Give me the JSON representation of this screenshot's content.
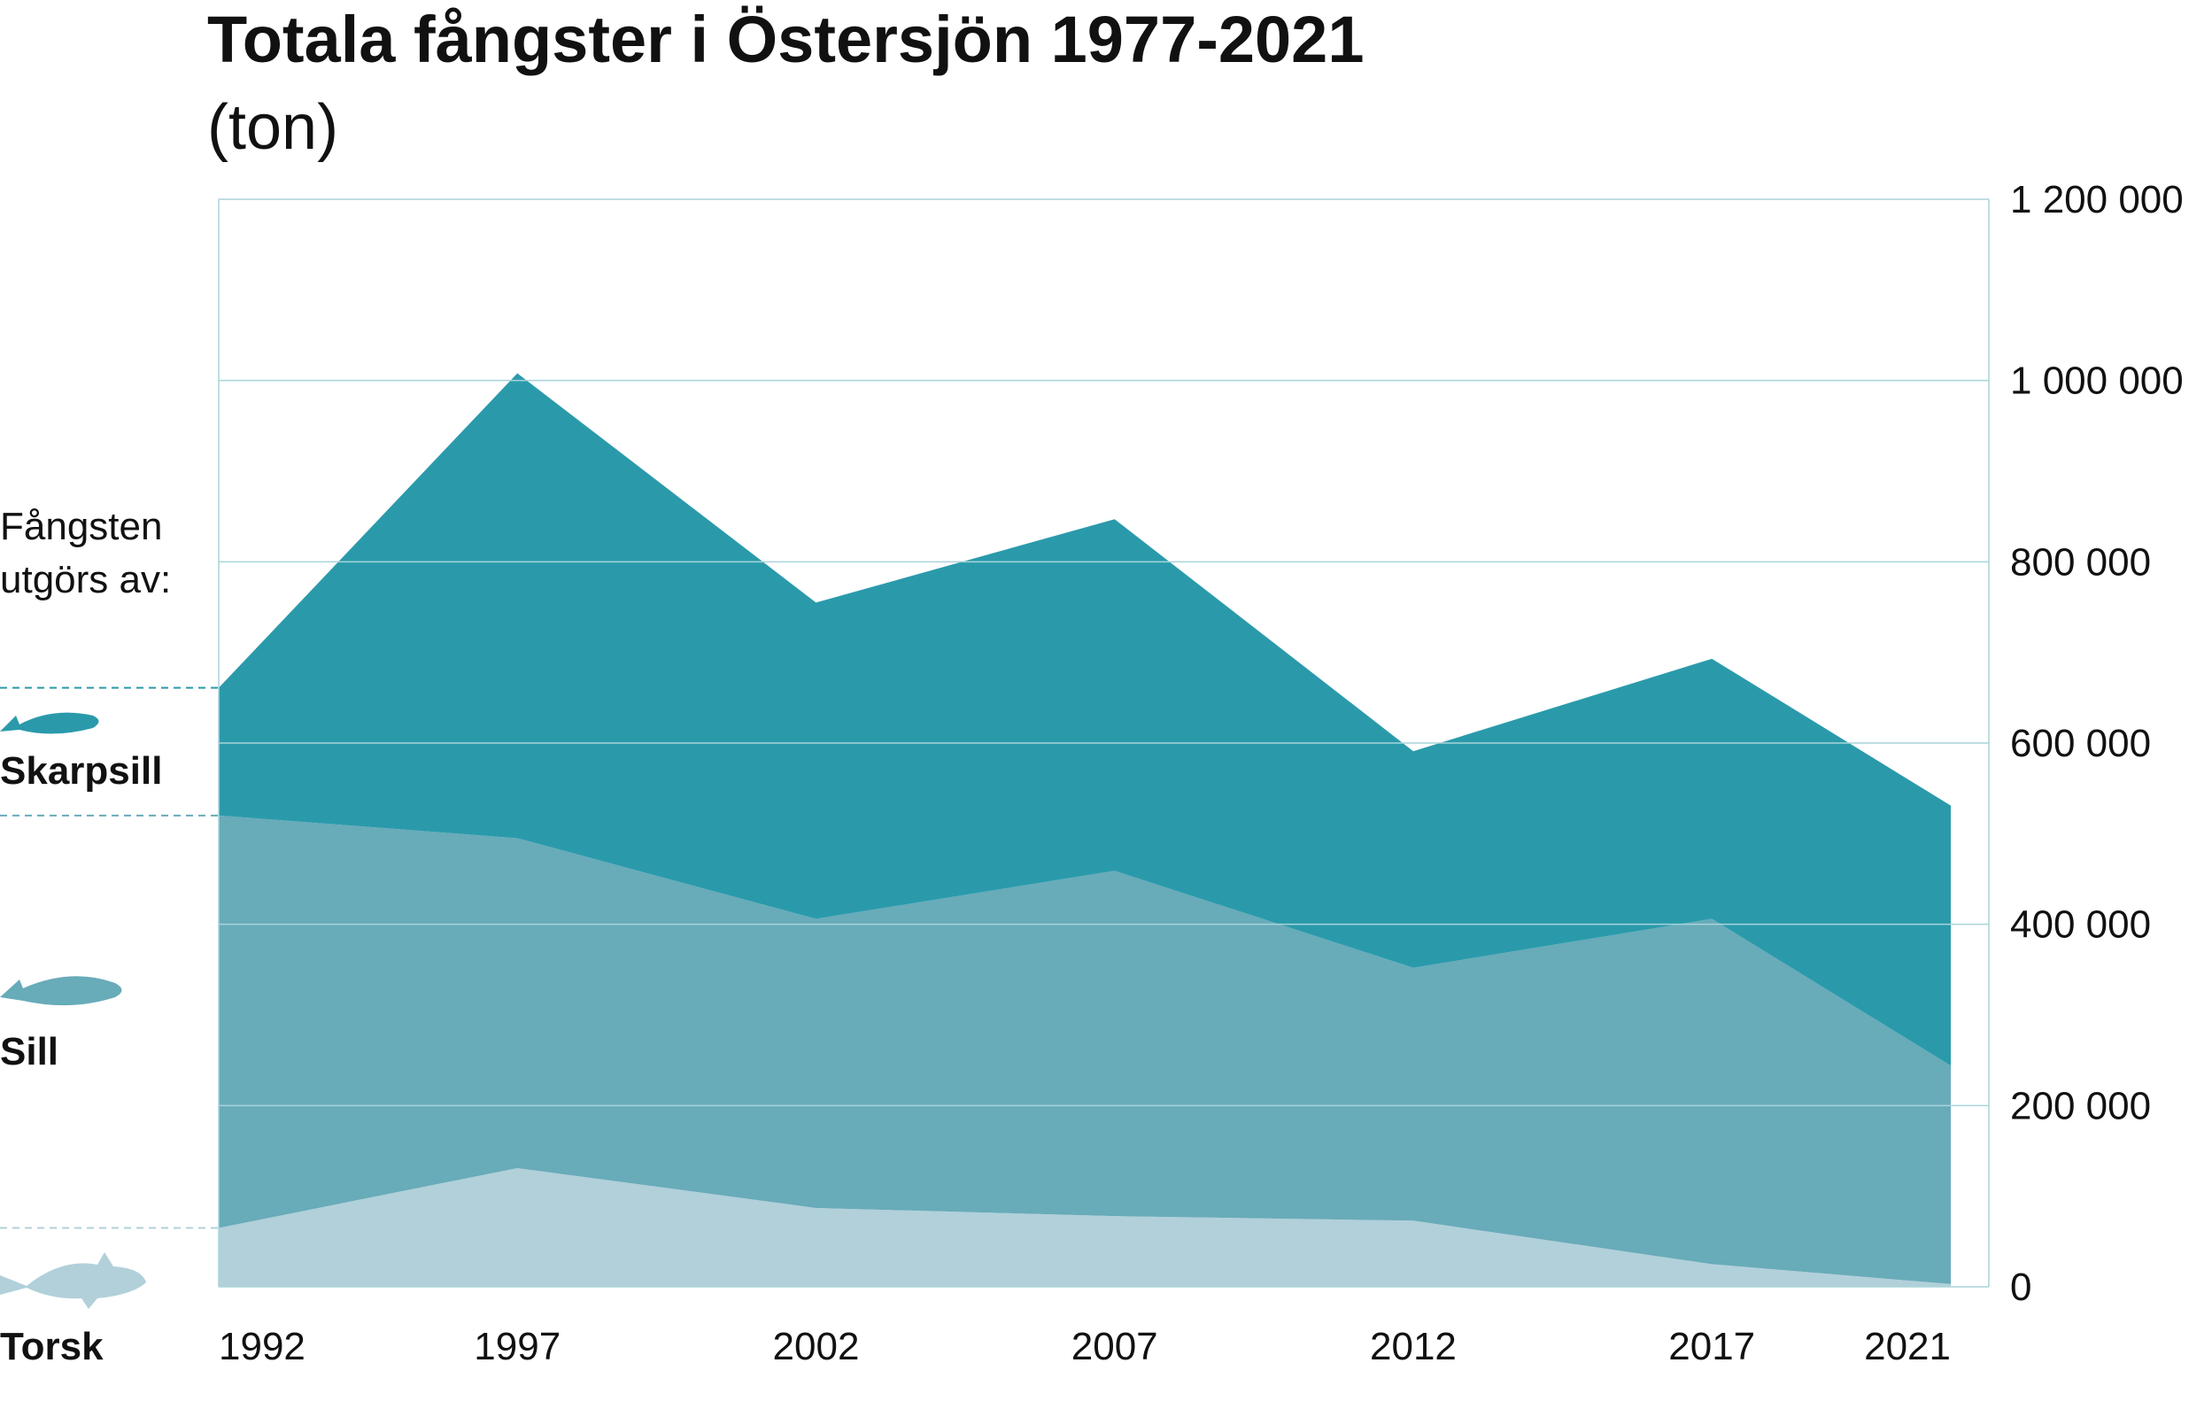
{
  "chart_data": {
    "type": "stacked_area",
    "title": "Totala fångster i Östersjön 1977-2021",
    "subtitle": "(ton)",
    "legend_title": "Fångsten utgörs av:",
    "x": [
      1992,
      1997,
      2002,
      2007,
      2012,
      2017,
      2021
    ],
    "xlim": [
      1992,
      2021
    ],
    "xticks": [
      1992,
      1997,
      2002,
      2007,
      2012,
      2017,
      2021
    ],
    "ylim": [
      0,
      1200000
    ],
    "yticks": [
      0,
      {
        "value": 200000,
        "label": "200 000"
      },
      {
        "value": 400000,
        "label": "400 000"
      },
      {
        "value": 600000,
        "label": "600 000"
      },
      {
        "value": 800000,
        "label": "800 000"
      },
      {
        "value": 1000000,
        "label": "1 000 000"
      },
      {
        "value": 1200000,
        "label": "1 200 000"
      }
    ],
    "grid": true,
    "legend": "left",
    "series": [
      {
        "name": "Torsk",
        "color": "#b1d0da",
        "values": [
          65000,
          131000,
          87000,
          78000,
          73000,
          25000,
          3000
        ]
      },
      {
        "name": "Sill",
        "color": "#68abb9",
        "values": [
          455000,
          364000,
          319000,
          381000,
          279000,
          381000,
          241000
        ]
      },
      {
        "name": "Skarpsill",
        "color": "#2a9aab",
        "values": [
          141000,
          513000,
          349000,
          388000,
          239000,
          287000,
          287000
        ]
      }
    ]
  }
}
